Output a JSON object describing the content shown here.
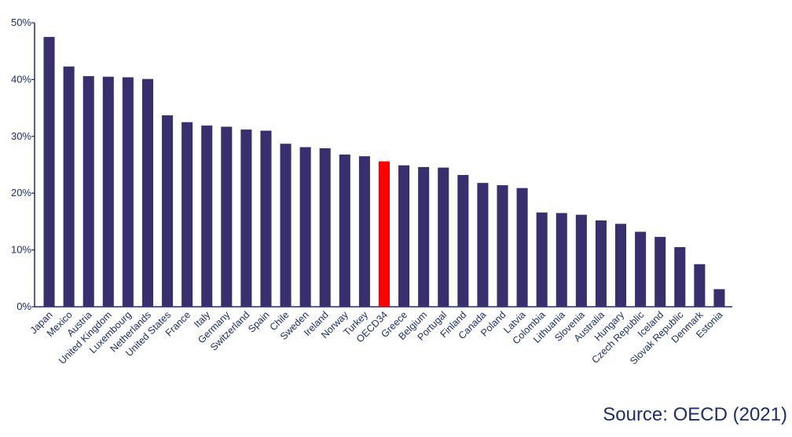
{
  "chart_data": {
    "type": "bar",
    "title": "",
    "xlabel": "",
    "ylabel": "",
    "ylim": [
      0,
      50
    ],
    "yticks": [
      0,
      10,
      20,
      30,
      40,
      50
    ],
    "ytick_labels": [
      "0%",
      "10%",
      "20%",
      "30%",
      "40%",
      "50%"
    ],
    "grid": false,
    "bar_color": "#372f6e",
    "highlight_color": "#ff0000",
    "highlight_category": "OECD34",
    "categories": [
      "Japan",
      "Mexico",
      "Austria",
      "United Kingdom",
      "Luxembourg",
      "Netherlands",
      "United States",
      "France",
      "Italy",
      "Germany",
      "Switzerland",
      "Spain",
      "Chile",
      "Sweden",
      "Ireland",
      "Norway",
      "Turkey",
      "OECD34",
      "Greece",
      "Belgium",
      "Portugal",
      "Finland",
      "Canada",
      "Poland",
      "Latvia",
      "Colombia",
      "Lithuania",
      "Slovenia",
      "Australia",
      "Hungary",
      "Czech Republic",
      "Iceland",
      "Slovak Republic",
      "Denmark",
      "Estonia"
    ],
    "values": [
      47.5,
      42.3,
      40.6,
      40.5,
      40.4,
      40.1,
      33.7,
      32.5,
      31.9,
      31.7,
      31.2,
      31.0,
      28.7,
      28.1,
      27.9,
      26.8,
      26.5,
      25.6,
      24.9,
      24.6,
      24.5,
      23.2,
      21.8,
      21.4,
      20.9,
      16.6,
      16.5,
      16.2,
      15.2,
      14.6,
      13.2,
      12.3,
      10.5,
      7.5,
      3.1
    ]
  },
  "source_text": "Source: OECD (2021)"
}
